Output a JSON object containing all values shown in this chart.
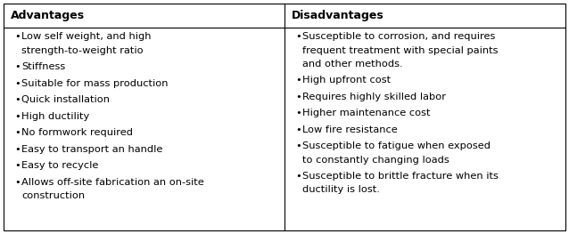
{
  "col1_header": "Advantages",
  "col2_header": "Disadvantages",
  "col1_items": [
    [
      "Low self weight, and high",
      "strength-to-weight ratio"
    ],
    [
      "Stiffness"
    ],
    [
      "Suitable for mass production"
    ],
    [
      "Quick installation"
    ],
    [
      "High ductility"
    ],
    [
      "No formwork required"
    ],
    [
      "Easy to transport an handle"
    ],
    [
      "Easy to recycle"
    ],
    [
      "Allows off-site fabrication an on-site",
      "construction"
    ]
  ],
  "col2_items": [
    [
      "Susceptible to corrosion, and requires",
      "frequent treatment with special paints",
      "and other methods."
    ],
    [
      "High upfront cost"
    ],
    [
      "Requires highly skilled labor"
    ],
    [
      "Higher maintenance cost"
    ],
    [
      "Low fire resistance"
    ],
    [
      "Susceptible to fatigue when exposed",
      "to constantly changing loads"
    ],
    [
      "Susceptible to brittle fracture when its",
      "ductility is lost."
    ]
  ],
  "bg_color": "#ffffff",
  "border_color": "#000000",
  "header_font_size": 9.0,
  "body_font_size": 8.2,
  "bullet": "•",
  "fig_width": 6.38,
  "fig_height": 2.63,
  "dpi": 100
}
